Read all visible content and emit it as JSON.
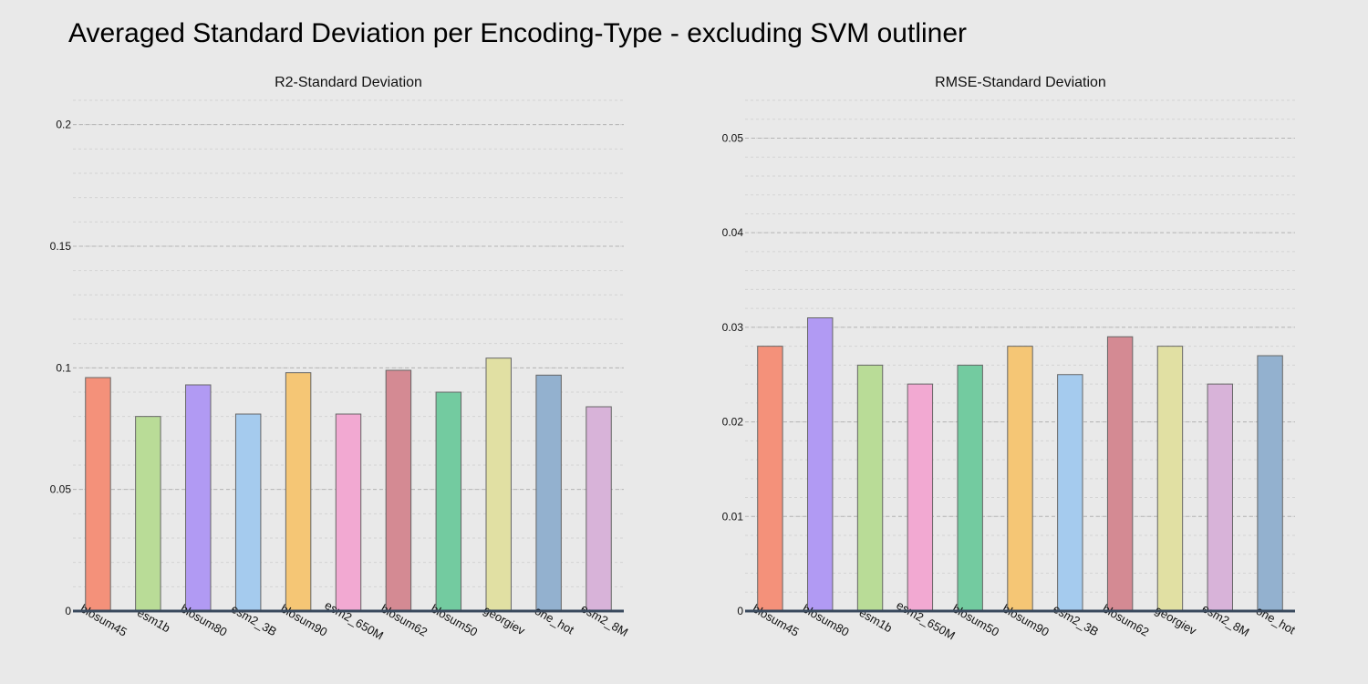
{
  "title": "Averaged Standard Deviation per Encoding-Type - excluding SVM outliner",
  "chart_data": [
    {
      "type": "bar",
      "title": "R2-Standard Deviation",
      "xlabel": "",
      "ylabel": "",
      "categories": [
        "blosum45",
        "esm1b",
        "blosum80",
        "esm2_3B",
        "blosum90",
        "esm2_650M",
        "blosum62",
        "blosum50",
        "georgiev",
        "one_hot",
        "esm2_8M"
      ],
      "values": [
        0.096,
        0.08,
        0.093,
        0.081,
        0.098,
        0.081,
        0.099,
        0.09,
        0.104,
        0.097,
        0.084
      ],
      "ylim": [
        0,
        0.21
      ],
      "yticks": [
        0,
        0.05,
        0.1,
        0.15,
        0.2
      ],
      "ytick_labels": [
        "0",
        "0.05",
        "0.1",
        "0.15",
        "0.2"
      ],
      "grid": true,
      "legend": "none"
    },
    {
      "type": "bar",
      "title": "RMSE-Standard Deviation",
      "xlabel": "",
      "ylabel": "",
      "categories": [
        "blosum45",
        "blosum80",
        "esm1b",
        "esm2_650M",
        "blosum50",
        "blosum90",
        "esm2_3B",
        "blosum62",
        "georgiev",
        "esm2_8M",
        "one_hot"
      ],
      "values": [
        0.028,
        0.031,
        0.026,
        0.024,
        0.026,
        0.028,
        0.025,
        0.029,
        0.028,
        0.024,
        0.027
      ],
      "ylim": [
        0,
        0.054
      ],
      "yticks": [
        0,
        0.01,
        0.02,
        0.03,
        0.04,
        0.05
      ],
      "ytick_labels": [
        "0",
        "0.01",
        "0.02",
        "0.03",
        "0.04",
        "0.05"
      ],
      "grid": true,
      "legend": "none"
    }
  ],
  "encoding_colors": {
    "blosum45": "#f4917a",
    "esm1b": "#b9dc97",
    "blosum80": "#b19af3",
    "esm2_3B": "#a5cbee",
    "blosum90": "#f5c675",
    "esm2_650M": "#f2a9d2",
    "blosum62": "#d48a93",
    "blosum50": "#73cba0",
    "georgiev": "#e1e0a3",
    "one_hot": "#93b1cf",
    "esm2_8M": "#d8b3d9"
  }
}
